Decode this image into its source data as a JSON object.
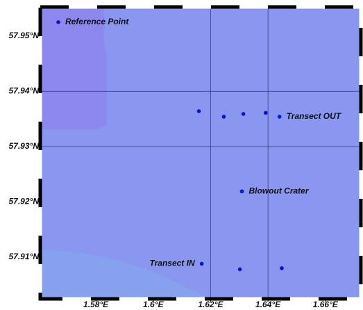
{
  "map": {
    "xlim": [
      1.5611,
      1.6719
    ],
    "ylim": [
      57.9027,
      57.955
    ],
    "xticks": [
      {
        "value": 1.58,
        "label": "1.58°E"
      },
      {
        "value": 1.6,
        "label": "1.6°E"
      },
      {
        "value": 1.62,
        "label": "1.62°E"
      },
      {
        "value": 1.64,
        "label": "1.64°E"
      },
      {
        "value": 1.66,
        "label": "1.66°E"
      }
    ],
    "yticks": [
      {
        "value": 57.91,
        "label": "57.91°N"
      },
      {
        "value": 57.92,
        "label": "57.92°N"
      },
      {
        "value": 57.93,
        "label": "57.93°N"
      },
      {
        "value": 57.94,
        "label": "57.94°N"
      },
      {
        "value": 57.95,
        "label": "57.95°N"
      }
    ],
    "xgrid": [
      1.62,
      1.64
    ],
    "ygrid": [
      57.93,
      57.94
    ],
    "point_color": "#0a14c8",
    "features": [
      {
        "label": "Reference Point",
        "label_side": "right",
        "lon": [
          1.5669
        ],
        "lat": [
          57.9525
        ]
      },
      {
        "label": "Transect OUT",
        "label_side": "right",
        "lon": [
          1.6159,
          1.6246,
          1.6314,
          1.6392,
          1.644
        ],
        "lat": [
          57.9364,
          57.9354,
          57.9359,
          57.9361,
          57.9354
        ]
      },
      {
        "label": "Blowout Crater",
        "label_side": "right",
        "lon": [
          1.6309
        ],
        "lat": [
          57.9219
        ]
      },
      {
        "label": "Transect IN",
        "label_side": "left",
        "lon": [
          1.6169,
          1.6302,
          1.6448
        ],
        "lat": [
          57.9088,
          57.9078,
          57.908
        ]
      }
    ]
  }
}
